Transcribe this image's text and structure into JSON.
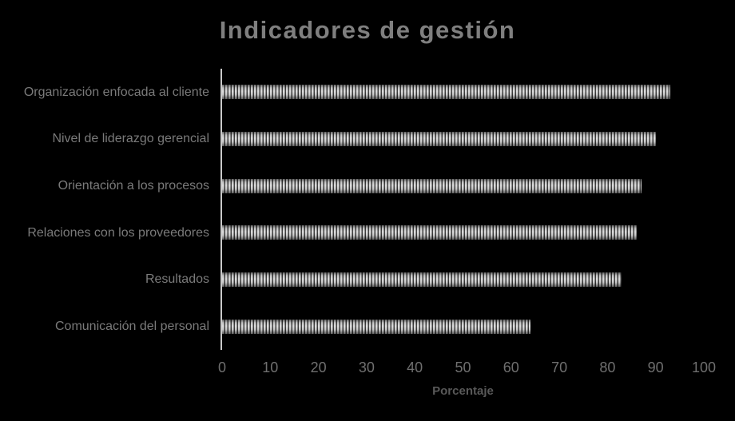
{
  "chart_data": {
    "type": "bar",
    "orientation": "horizontal",
    "title": "Indicadores de gestión",
    "xlabel": "Porcentaje",
    "ylabel": "",
    "categories": [
      "Organización enfocada al cliente",
      "Nivel de liderazgo gerencial",
      "Orientación a los procesos",
      "Relaciones con los proveedores",
      "Resultados",
      "Comunicación del personal"
    ],
    "values": [
      93,
      90,
      87,
      86,
      83,
      64
    ],
    "xlim": [
      0,
      100
    ],
    "xticks": [
      0,
      10,
      20,
      30,
      40,
      50,
      60,
      70,
      80,
      90,
      100
    ],
    "grid": false,
    "legend": false,
    "bar_fill": "vertical-stripe-pattern",
    "colors": {
      "background": "#000000",
      "title_color": "#7f7f7f",
      "category_label": "#7a7a7a",
      "tick_label": "#6f6f6f",
      "axis_label": "#595959",
      "axis_line": "#c9c9c9",
      "bar_stripe_light": "#d9d9d9",
      "bar_stripe_mid": "#8c8c8c",
      "bar_stripe_dark": "#333333"
    }
  }
}
